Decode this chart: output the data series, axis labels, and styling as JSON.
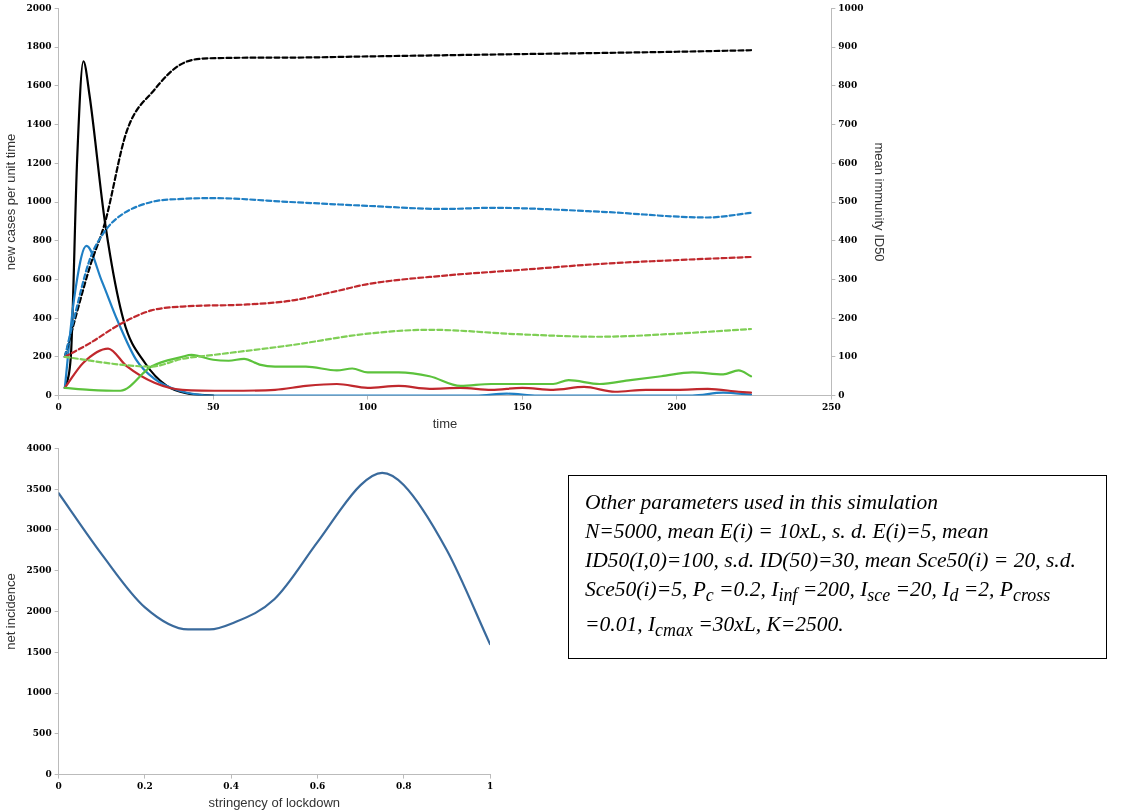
{
  "chart_data": [
    {
      "type": "line",
      "xlabel": "time",
      "ylabel": "new cases per unit time",
      "y2label": "mean immunity ID50",
      "xlim": [
        0,
        250
      ],
      "xticks": [
        0,
        50,
        100,
        150,
        200,
        250
      ],
      "ylim": [
        0,
        2000
      ],
      "yticks": [
        0,
        200,
        400,
        600,
        800,
        1000,
        1200,
        1400,
        1600,
        1800,
        2000
      ],
      "y2lim": [
        0,
        1000
      ],
      "y2ticks": [
        0,
        100,
        200,
        300,
        400,
        500,
        600,
        700,
        800,
        900,
        1000
      ],
      "grid": false,
      "legend": false,
      "marker": "none",
      "series": [
        {
          "color": "#000000",
          "line_style": "solid",
          "x": [
            2,
            4,
            6,
            8,
            10,
            15,
            21,
            28,
            35,
            42,
            50
          ],
          "values": [
            40,
            217,
            1227,
            1727,
            1550,
            894,
            389,
            167,
            50,
            10,
            0
          ]
        },
        {
          "color": "#1f7fc4",
          "line_style": "solid",
          "x": [
            2,
            5,
            9,
            14,
            19,
            25,
            31,
            39,
            50,
            100,
            135,
            145,
            155,
            205,
            215,
            224
          ],
          "values": [
            40,
            500,
            773,
            590,
            389,
            187,
            86,
            25,
            0,
            0,
            0,
            10,
            0,
            0,
            15,
            5
          ]
        },
        {
          "color": "#c0282d",
          "line_style": "solid",
          "x": [
            2,
            8,
            16,
            22,
            31,
            40,
            55,
            70,
            80,
            90,
            100,
            110,
            120,
            130,
            140,
            150,
            160,
            170,
            180,
            190,
            200,
            210,
            220,
            224
          ],
          "values": [
            40,
            170,
            243,
            152,
            66,
            30,
            25,
            30,
            50,
            60,
            40,
            50,
            35,
            40,
            30,
            40,
            30,
            45,
            20,
            30,
            30,
            35,
            20,
            15
          ]
        },
        {
          "color": "#5cc23c",
          "line_style": "solid",
          "x": [
            2,
            10,
            20,
            30,
            40,
            43,
            50,
            55,
            60,
            65,
            70,
            80,
            90,
            95,
            100,
            110,
            120,
            130,
            140,
            150,
            160,
            165,
            175,
            185,
            195,
            205,
            215,
            220,
            224
          ],
          "values": [
            40,
            30,
            25,
            150,
            200,
            210,
            185,
            180,
            190,
            160,
            150,
            150,
            130,
            140,
            120,
            120,
            100,
            50,
            60,
            60,
            60,
            80,
            60,
            80,
            100,
            120,
            110,
            130,
            100
          ]
        },
        {
          "color": "#000000",
          "line_style": "dashed",
          "axis": "y2",
          "x": [
            2,
            10,
            15,
            22,
            31,
            39,
            48,
            75,
            100,
            150,
            200,
            224
          ],
          "values": [
            100,
            330,
            447,
            682,
            790,
            853,
            871,
            873,
            876,
            882,
            888,
            892
          ]
        },
        {
          "color": "#1f7fc4",
          "line_style": "dashed",
          "axis": "y2",
          "x": [
            2,
            5,
            10,
            15,
            20,
            30,
            40,
            50,
            75,
            100,
            125,
            140,
            175,
            210,
            224
          ],
          "values": [
            100,
            200,
            350,
            425,
            465,
            500,
            508,
            510,
            500,
            490,
            482,
            485,
            475,
            460,
            472
          ]
        },
        {
          "color": "#c0282d",
          "line_style": "dashed",
          "axis": "y2",
          "x": [
            2,
            10,
            20,
            30,
            40,
            60,
            75,
            90,
            100,
            125,
            150,
            175,
            200,
            224
          ],
          "values": [
            100,
            135,
            185,
            220,
            230,
            235,
            245,
            270,
            288,
            310,
            325,
            340,
            350,
            358
          ]
        },
        {
          "color": "#7fcf55",
          "line_style": "dashed",
          "axis": "y2",
          "x": [
            2,
            20,
            30,
            40,
            50,
            75,
            100,
            120,
            150,
            175,
            200,
            224
          ],
          "values": [
            100,
            80,
            75,
            95,
            105,
            130,
            160,
            170,
            158,
            152,
            160,
            172
          ]
        }
      ]
    },
    {
      "type": "line",
      "xlabel": "stringency of lockdown",
      "ylabel": "net incidence",
      "xlim": [
        0,
        1
      ],
      "xticks": [
        0,
        0.2,
        0.4,
        0.6,
        0.8,
        1
      ],
      "ylim": [
        0,
        4000
      ],
      "yticks": [
        0,
        500,
        1000,
        1500,
        2000,
        2500,
        3000,
        3500,
        4000
      ],
      "grid": false,
      "legend": false,
      "marker": "none",
      "series": [
        {
          "color": "#3a6a9c",
          "line_style": "solid",
          "x": [
            0,
            0.1,
            0.2,
            0.3,
            0.35,
            0.4,
            0.5,
            0.6,
            0.7,
            0.75,
            0.8,
            0.9,
            1
          ],
          "values": [
            3450,
            2700,
            2050,
            1780,
            1780,
            1850,
            2150,
            2850,
            3550,
            3700,
            3550,
            2750,
            1600
          ]
        }
      ]
    },
    {
      "type": "other",
      "title": "Other parameters used in this simulation",
      "annotations": [
        "N=5000, mean E(i) = 10xL, s. d. E(i)=5, mean ID50(I,0)=100, s.d. ID(50)=30, mean Sce50(i) = 20, s.d. Sce50(i)=5, P$_{c}$ =0.2, I$_{inf}$ =200, I$_{sce}$ =20, I$_{d}$ =2, P$_{cross}$ =0.01, I$_{cmax}$ =30xL, K=2500."
      ]
    }
  ]
}
